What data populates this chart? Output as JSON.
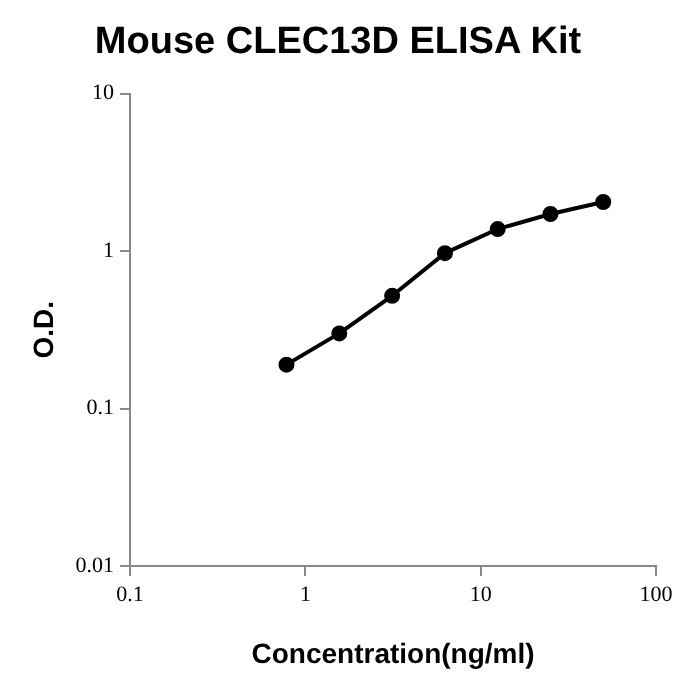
{
  "chart_data": {
    "type": "line",
    "title": "Mouse CLEC13D ELISA Kit",
    "xlabel": "Concentration(ng/ml)",
    "ylabel": "O.D.",
    "x": [
      0.78,
      1.56,
      3.125,
      6.25,
      12.5,
      25,
      50
    ],
    "series": [
      {
        "color": "#000000",
        "values": [
          0.19,
          0.3,
          0.52,
          0.97,
          1.38,
          1.72,
          2.05
        ]
      }
    ],
    "log": "xy",
    "xlim": [
      0.1,
      100
    ],
    "xticks": [
      0.1,
      1,
      10,
      100
    ],
    "ylim": [
      0.01,
      10
    ],
    "yticks": [
      0.01,
      0.1,
      1,
      10
    ],
    "grid": false,
    "legend": false,
    "marker": "circle",
    "line_style": "solid"
  }
}
